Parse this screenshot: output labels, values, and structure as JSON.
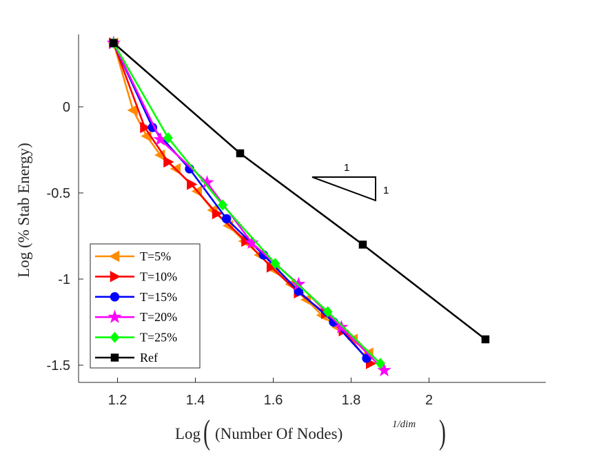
{
  "chart_data": {
    "type": "line",
    "xlabel_prefix": "Log",
    "xlabel_inner": "(Number Of Nodes)",
    "xlabel_exponent": "1/dim",
    "ylabel": "Log (% Stab Energy)",
    "xlim": [
      1.1,
      2.3
    ],
    "ylim": [
      -1.6,
      0.42
    ],
    "xticks": [
      1.2,
      1.4,
      1.6,
      1.8,
      2.0
    ],
    "xtick_labels": [
      "1.2",
      "1.4",
      "1.6",
      "1.8",
      "2"
    ],
    "yticks": [
      0,
      -0.5,
      -1,
      -1.5
    ],
    "ytick_labels": [
      "0",
      "-0.5",
      "-1",
      "-1.5"
    ],
    "grid": false,
    "legend_position": "bottom-left",
    "slope_triangle": {
      "run_label": "1",
      "rise_label": "1"
    },
    "series": [
      {
        "name": "T=5%",
        "color": "#FF8C00",
        "marker": "triangle-left",
        "x": [
          1.19,
          1.24,
          1.275,
          1.31,
          1.35,
          1.405,
          1.445,
          1.485,
          1.525,
          1.565,
          1.605,
          1.645,
          1.685,
          1.725,
          1.765,
          1.805,
          1.845
        ],
        "y": [
          0.37,
          -0.02,
          -0.17,
          -0.28,
          -0.36,
          -0.49,
          -0.6,
          -0.69,
          -0.78,
          -0.86,
          -0.95,
          -1.03,
          -1.12,
          -1.21,
          -1.28,
          -1.35,
          -1.43
        ]
      },
      {
        "name": "T=10%",
        "color": "#FF0000",
        "marker": "triangle-right",
        "x": [
          1.19,
          1.27,
          1.33,
          1.39,
          1.455,
          1.53,
          1.595,
          1.665,
          1.735,
          1.78,
          1.85
        ],
        "y": [
          0.37,
          -0.12,
          -0.32,
          -0.45,
          -0.62,
          -0.78,
          -0.93,
          -1.08,
          -1.2,
          -1.3,
          -1.49
        ]
      },
      {
        "name": "T=15%",
        "color": "#0000FF",
        "marker": "circle",
        "x": [
          1.19,
          1.29,
          1.385,
          1.48,
          1.575,
          1.665,
          1.755,
          1.84
        ],
        "y": [
          0.37,
          -0.12,
          -0.36,
          -0.65,
          -0.86,
          -1.07,
          -1.25,
          -1.46
        ]
      },
      {
        "name": "T=20%",
        "color": "#FF00FF",
        "marker": "star",
        "x": [
          1.19,
          1.31,
          1.43,
          1.545,
          1.665,
          1.775,
          1.885
        ],
        "y": [
          0.37,
          -0.19,
          -0.44,
          -0.79,
          -1.03,
          -1.28,
          -1.53
        ]
      },
      {
        "name": "T=25%",
        "color": "#00FF00",
        "marker": "diamond",
        "x": [
          1.19,
          1.33,
          1.47,
          1.605,
          1.74,
          1.875
        ],
        "y": [
          0.37,
          -0.18,
          -0.57,
          -0.91,
          -1.19,
          -1.49
        ]
      },
      {
        "name": "Ref",
        "color": "#000000",
        "marker": "square",
        "x": [
          1.19,
          1.515,
          1.83,
          2.145
        ],
        "y": [
          0.37,
          -0.27,
          -0.8,
          -1.35
        ]
      }
    ]
  }
}
